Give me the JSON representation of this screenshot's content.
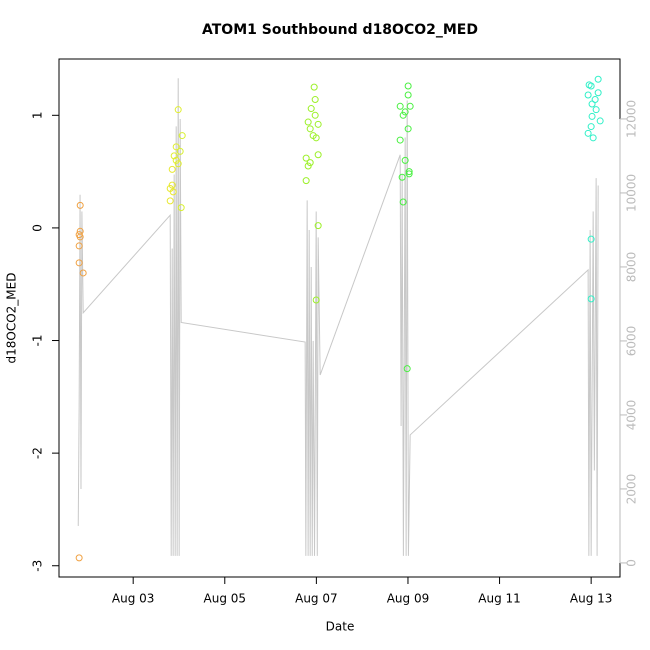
{
  "chart_data": {
    "type": "scatter",
    "title": "ATOM1 Southbound d18OCO2_MED",
    "xlabel": "Date",
    "ylabel": "d18OCO2_MED",
    "xlim": [
      1.38,
      13.63
    ],
    "ylim": [
      -3.1,
      1.5
    ],
    "y2lim": [
      -380,
      13620
    ],
    "xticks": [
      {
        "value": 3,
        "label": "Aug 03"
      },
      {
        "value": 5,
        "label": "Aug 05"
      },
      {
        "value": 7,
        "label": "Aug 07"
      },
      {
        "value": 9,
        "label": "Aug 09"
      },
      {
        "value": 11,
        "label": "Aug 11"
      },
      {
        "value": 13,
        "label": "Aug 13"
      }
    ],
    "yticks": [
      -3,
      -2,
      -1,
      0,
      1
    ],
    "y2ticks": [
      0,
      2000,
      4000,
      6000,
      8000,
      10000,
      12000
    ],
    "series": [
      {
        "x": [
          1.843,
          1.843,
          1.82,
          1.82,
          1.843,
          1.82,
          1.908,
          1.82,
          3.983,
          4.07,
          3.939,
          4.026,
          3.895,
          3.939,
          3.983,
          3.852,
          3.852,
          3.808,
          3.873,
          3.808,
          4.048,
          6.952,
          6.974,
          6.887,
          6.974,
          6.821,
          7.039,
          6.865,
          6.93,
          6.996,
          6.777,
          6.865,
          6.821,
          6.777,
          7.039,
          7.039,
          6.996,
          9.004,
          9.004,
          8.83,
          9.048,
          8.939,
          8.895,
          9.004,
          8.83,
          8.939,
          9.026,
          9.026,
          8.873,
          8.895,
          8.983,
          13.153,
          12.956,
          13.0,
          13.153,
          12.934,
          13.087,
          13.02,
          13.109,
          13.02,
          13.197,
          13.0,
          12.934,
          13.044,
          13.0,
          13.0
        ],
        "values": [
          0.2,
          -0.03,
          -0.06,
          -0.16,
          -0.08,
          -0.31,
          -0.4,
          -2.93,
          1.05,
          0.82,
          0.72,
          0.68,
          0.64,
          0.6,
          0.57,
          0.52,
          0.38,
          0.35,
          0.32,
          0.24,
          0.18,
          1.25,
          1.14,
          1.06,
          1.0,
          0.94,
          0.92,
          0.88,
          0.82,
          0.8,
          0.62,
          0.58,
          0.55,
          0.42,
          0.65,
          0.02,
          -0.64,
          1.26,
          1.18,
          1.08,
          1.08,
          1.03,
          1.0,
          0.88,
          0.78,
          0.6,
          0.5,
          0.48,
          0.45,
          0.23,
          -1.25,
          1.32,
          1.27,
          1.26,
          1.2,
          1.18,
          1.14,
          1.1,
          1.05,
          0.99,
          0.95,
          0.9,
          0.84,
          0.8,
          -0.1,
          -0.63
        ],
        "colors": [
          "#f0a040",
          "#f0a040",
          "#f0a040",
          "#f0a040",
          "#f0a040",
          "#f0a040",
          "#f0a040",
          "#f0a040",
          "#e0ee30",
          "#d8f030",
          "#e0ee30",
          "#d8f030",
          "#e0ee30",
          "#e0ee30",
          "#e0ee30",
          "#e8e830",
          "#e8e830",
          "#e8e830",
          "#e8e830",
          "#e8e830",
          "#d8f030",
          "#9cf028",
          "#9cf028",
          "#9cf028",
          "#9cf028",
          "#9cf028",
          "#9cf028",
          "#9cf028",
          "#9cf028",
          "#9cf028",
          "#9cf028",
          "#9cf028",
          "#9cf028",
          "#9cf028",
          "#9cf028",
          "#9cf028",
          "#9cf028",
          "#48f040",
          "#48f040",
          "#48f040",
          "#48f040",
          "#48f040",
          "#48f040",
          "#48f040",
          "#48f040",
          "#48f040",
          "#48f040",
          "#48f040",
          "#48f040",
          "#48f040",
          "#48f040",
          "#30f0c8",
          "#30f0c8",
          "#30f0c8",
          "#30f0c8",
          "#30f0c8",
          "#30f0c8",
          "#30f0c8",
          "#30f0c8",
          "#30f0c8",
          "#30f0c8",
          "#30f0c8",
          "#30f0c8",
          "#30f0c8",
          "#30f0c8",
          "#30f0c8"
        ]
      },
      {
        "type": "line",
        "axis": "y2",
        "color": "#c8c8c8",
        "x": [
          1.8,
          1.82,
          1.84,
          1.86,
          1.88,
          1.908,
          3.808,
          3.83,
          3.852,
          3.873,
          3.895,
          3.917,
          3.939,
          3.96,
          3.983,
          4.004,
          4.026,
          4.048,
          6.755,
          6.77,
          6.799,
          6.82,
          6.843,
          6.865,
          6.887,
          6.91,
          6.93,
          6.96,
          6.996,
          7.02,
          7.039,
          7.083,
          8.83,
          8.85,
          8.873,
          8.9,
          8.939,
          8.96,
          8.983,
          9.01,
          9.048,
          12.934,
          12.95,
          12.978,
          13.0,
          13.044,
          13.07,
          13.109,
          13.13,
          13.153
        ],
        "values": [
          1000,
          4200,
          9950,
          2000,
          9500,
          6760,
          9400,
          190,
          8500,
          190,
          10500,
          190,
          11800,
          190,
          13100,
          190,
          12000,
          6500,
          5970,
          190,
          9800,
          190,
          9000,
          190,
          8000,
          190,
          6000,
          190,
          9500,
          190,
          8800,
          5080,
          11030,
          3700,
          10500,
          190,
          11500,
          190,
          12500,
          190,
          3460,
          7920,
          190,
          9000,
          190,
          9500,
          2500,
          10400,
          190,
          10200
        ]
      }
    ]
  }
}
